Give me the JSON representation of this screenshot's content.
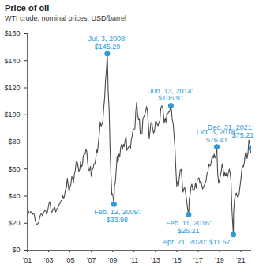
{
  "chart_data": {
    "type": "line",
    "title": "Price of oil",
    "subtitle": "WTI crude, nominal prices, USD/barrel",
    "color": "#4a4a4a",
    "grid": false,
    "xlim": [
      2001,
      2022
    ],
    "xticks": [
      {
        "value": 2001,
        "label": "'01"
      },
      {
        "value": 2003,
        "label": "'03"
      },
      {
        "value": 2005,
        "label": "'05"
      },
      {
        "value": 2007,
        "label": "'07"
      },
      {
        "value": 2009,
        "label": "'09"
      },
      {
        "value": 2011,
        "label": "'11"
      },
      {
        "value": 2013,
        "label": "'13"
      },
      {
        "value": 2015,
        "label": "'15"
      },
      {
        "value": 2017,
        "label": "'17"
      },
      {
        "value": 2019,
        "label": "'19"
      },
      {
        "value": 2021,
        "label": "'21"
      }
    ],
    "ylim": [
      0,
      160
    ],
    "yticks": [
      {
        "value": 0,
        "label": "$0"
      },
      {
        "value": 20,
        "label": "$20"
      },
      {
        "value": 40,
        "label": "$40"
      },
      {
        "value": 60,
        "label": "$60"
      },
      {
        "value": 80,
        "label": "$80"
      },
      {
        "value": 100,
        "label": "$100"
      },
      {
        "value": 120,
        "label": "$120"
      },
      {
        "value": 140,
        "label": "$140"
      },
      {
        "value": 160,
        "label": "$160"
      }
    ],
    "x": [
      2001,
      2001.08,
      2001.17,
      2001.25,
      2001.33,
      2001.42,
      2001.5,
      2001.58,
      2001.67,
      2001.75,
      2001.83,
      2001.92,
      2002,
      2002.08,
      2002.17,
      2002.25,
      2002.33,
      2002.42,
      2002.5,
      2002.58,
      2002.67,
      2002.75,
      2002.83,
      2002.92,
      2003,
      2003.08,
      2003.17,
      2003.25,
      2003.33,
      2003.42,
      2003.5,
      2003.58,
      2003.67,
      2003.75,
      2003.83,
      2003.92,
      2004,
      2004.08,
      2004.17,
      2004.25,
      2004.33,
      2004.42,
      2004.5,
      2004.58,
      2004.67,
      2004.75,
      2004.83,
      2004.92,
      2005,
      2005.08,
      2005.17,
      2005.25,
      2005.33,
      2005.42,
      2005.5,
      2005.58,
      2005.67,
      2005.75,
      2005.83,
      2005.92,
      2006,
      2006.08,
      2006.17,
      2006.25,
      2006.33,
      2006.42,
      2006.5,
      2006.58,
      2006.67,
      2006.75,
      2006.83,
      2006.92,
      2007,
      2007.08,
      2007.17,
      2007.25,
      2007.33,
      2007.42,
      2007.5,
      2007.58,
      2007.67,
      2007.75,
      2007.83,
      2007.92,
      2008,
      2008.08,
      2008.17,
      2008.25,
      2008.33,
      2008.42,
      2008.5,
      2008.58,
      2008.67,
      2008.75,
      2008.83,
      2008.92,
      2009,
      2009.12,
      2009.17,
      2009.25,
      2009.33,
      2009.42,
      2009.5,
      2009.58,
      2009.67,
      2009.75,
      2009.83,
      2009.92,
      2010,
      2010.08,
      2010.17,
      2010.25,
      2010.33,
      2010.42,
      2010.5,
      2010.58,
      2010.67,
      2010.75,
      2010.83,
      2010.92,
      2011,
      2011.08,
      2011.17,
      2011.25,
      2011.33,
      2011.42,
      2011.5,
      2011.58,
      2011.67,
      2011.75,
      2011.83,
      2011.92,
      2012,
      2012.08,
      2012.17,
      2012.25,
      2012.33,
      2012.42,
      2012.5,
      2012.58,
      2012.67,
      2012.75,
      2012.83,
      2012.92,
      2013,
      2013.08,
      2013.17,
      2013.25,
      2013.33,
      2013.42,
      2013.5,
      2013.58,
      2013.67,
      2013.75,
      2013.83,
      2013.92,
      2014,
      2014.08,
      2014.17,
      2014.25,
      2014.33,
      2014.45,
      2014.5,
      2014.58,
      2014.67,
      2014.75,
      2014.83,
      2014.92,
      2015,
      2015.08,
      2015.17,
      2015.25,
      2015.33,
      2015.42,
      2015.5,
      2015.58,
      2015.67,
      2015.75,
      2015.83,
      2015.92,
      2016,
      2016.11,
      2016.17,
      2016.25,
      2016.33,
      2016.42,
      2016.5,
      2016.58,
      2016.67,
      2016.75,
      2016.83,
      2016.92,
      2017,
      2017.08,
      2017.17,
      2017.25,
      2017.33,
      2017.42,
      2017.5,
      2017.58,
      2017.67,
      2017.75,
      2017.83,
      2017.92,
      2018,
      2018.08,
      2018.17,
      2018.25,
      2018.33,
      2018.42,
      2018.5,
      2018.58,
      2018.67,
      2018.75,
      2018.83,
      2018.92,
      2019,
      2019.08,
      2019.17,
      2019.25,
      2019.33,
      2019.42,
      2019.5,
      2019.58,
      2019.67,
      2019.75,
      2019.83,
      2019.92,
      2020,
      2020.08,
      2020.17,
      2020.3,
      2020.33,
      2020.42,
      2020.5,
      2020.58,
      2020.67,
      2020.75,
      2020.83,
      2020.92,
      2021,
      2021.08,
      2021.17,
      2021.25,
      2021.33,
      2021.42,
      2021.5,
      2021.58,
      2021.67,
      2021.75,
      2021.83,
      2021.92,
      2021.99
    ],
    "values": [
      29.6,
      29.6,
      27.2,
      27.4,
      28.6,
      27.6,
      26.5,
      27.5,
      25.9,
      22.2,
      19.7,
      19.3,
      19.7,
      20.7,
      24.4,
      26.3,
      27.0,
      25.5,
      26.9,
      28.4,
      29.7,
      28.9,
      26.3,
      29.4,
      32.9,
      35.9,
      33.6,
      28.3,
      28.1,
      30.7,
      30.8,
      31.6,
      28.3,
      30.3,
      31.1,
      32.2,
      34.3,
      34.7,
      36.7,
      36.7,
      40.3,
      38.0,
      40.7,
      44.9,
      45.9,
      53.1,
      48.5,
      43.3,
      46.8,
      48.0,
      54.3,
      53.0,
      49.8,
      56.3,
      58.7,
      65.0,
      65.6,
      62.4,
      58.3,
      59.4,
      65.5,
      61.6,
      62.9,
      69.7,
      70.9,
      70.9,
      74.4,
      73.0,
      63.8,
      58.9,
      59.1,
      62.0,
      54.5,
      59.3,
      60.4,
      63.9,
      63.5,
      67.5,
      74.1,
      72.4,
      79.9,
      85.8,
      94.8,
      91.7,
      93.0,
      95.4,
      105.5,
      112.6,
      125.4,
      133.9,
      145.29,
      116.7,
      104.1,
      76.6,
      57.3,
      41.1,
      41.7,
      33.98,
      47.9,
      49.7,
      59.0,
      69.6,
      64.2,
      71.0,
      69.4,
      75.7,
      78.0,
      74.5,
      78.3,
      76.4,
      81.2,
      84.3,
      73.7,
      75.3,
      76.3,
      76.6,
      75.2,
      81.9,
      84.3,
      89.2,
      89.5,
      89.6,
      102.9,
      109.5,
      100.9,
      96.3,
      97.3,
      86.3,
      85.5,
      86.3,
      97.2,
      98.6,
      100.3,
      102.2,
      106.2,
      103.3,
      94.7,
      82.3,
      87.9,
      94.1,
      94.5,
      89.5,
      86.5,
      87.9,
      94.8,
      95.3,
      92.9,
      92.0,
      94.5,
      95.8,
      104.6,
      106.6,
      106.3,
      100.5,
      93.9,
      97.6,
      94.6,
      100.8,
      100.8,
      102.1,
      102.2,
      106.91,
      103.6,
      96.5,
      93.2,
      84.4,
      75.8,
      59.3,
      47.2,
      50.6,
      47.8,
      54.5,
      59.3,
      59.8,
      50.9,
      42.9,
      45.5,
      46.2,
      42.4,
      37.2,
      31.7,
      26.21,
      37.6,
      40.8,
      46.7,
      48.8,
      44.7,
      44.7,
      45.2,
      49.8,
      45.7,
      52.0,
      52.5,
      53.5,
      49.3,
      51.1,
      48.5,
      45.2,
      46.6,
      48.0,
      49.8,
      51.6,
      56.6,
      57.9,
      63.7,
      62.2,
      62.7,
      66.3,
      70.0,
      67.9,
      71.0,
      68.1,
      70.2,
      76.41,
      57.0,
      49.5,
      51.4,
      55.0,
      58.2,
      63.9,
      60.8,
      54.7,
      57.4,
      54.8,
      57.0,
      54.0,
      57.0,
      59.9,
      57.5,
      50.5,
      29.2,
      11.57,
      28.6,
      38.3,
      40.7,
      42.3,
      39.6,
      39.4,
      41.4,
      47.0,
      52.0,
      59.0,
      62.3,
      61.7,
      65.2,
      71.4,
      72.5,
      67.7,
      71.6,
      81.5,
      79.2,
      72.0,
      75.21
    ],
    "annotations": [
      {
        "x": 2008.5,
        "value": 145.29,
        "label": "Jul. 3, 2008:",
        "value_label": "$145.29"
      },
      {
        "x": 2009.12,
        "value": 33.98,
        "label": "Feb. 12, 2009:",
        "value_label": "$33.98"
      },
      {
        "x": 2014.45,
        "value": 106.91,
        "label": "Jun. 13, 2014:",
        "value_label": "$106.91"
      },
      {
        "x": 2016.11,
        "value": 26.21,
        "label": "Feb. 11, 2016:",
        "value_label": "$26.21"
      },
      {
        "x": 2018.75,
        "value": 76.41,
        "label": "Oct. 3, 2018:",
        "value_label": "$76.41"
      },
      {
        "x": 2020.3,
        "value": 11.57,
        "label": "Apr. 21, 2020:",
        "value_label": "$11.57"
      },
      {
        "x": 2021.99,
        "value": 75.21,
        "label": "Dec. 31, 2021:",
        "value_label": "$75.21"
      }
    ]
  }
}
